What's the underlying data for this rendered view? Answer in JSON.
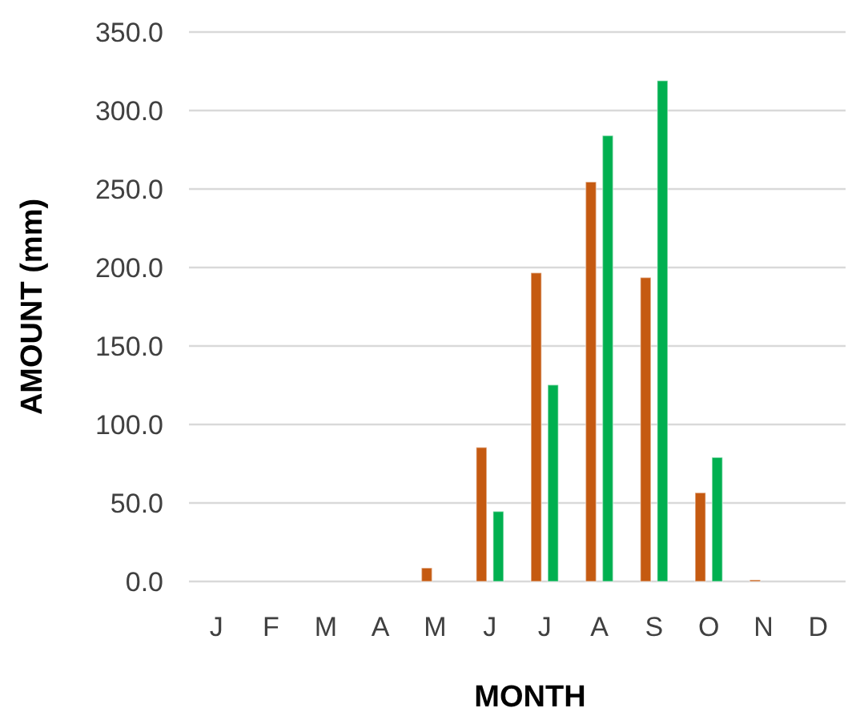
{
  "chart_data": {
    "type": "bar",
    "xlabel": "MONTH",
    "ylabel": "AMOUNT (mm)",
    "categories": [
      "J",
      "F",
      "M",
      "A",
      "M",
      "J",
      "J",
      "A",
      "S",
      "O",
      "N",
      "D"
    ],
    "series": [
      {
        "color": "#c55a11",
        "values": [
          0,
          0,
          0,
          0,
          8.6,
          85.4,
          196.6,
          254.5,
          193.6,
          56.5,
          1,
          0
        ]
      },
      {
        "color": "#00b050",
        "values": [
          0,
          0,
          0,
          0,
          0,
          44.6,
          125.2,
          284,
          319,
          79,
          0,
          0
        ]
      }
    ],
    "ylim": [
      0,
      350
    ],
    "yticks": [
      {
        "value": 0,
        "label": "0.0"
      },
      {
        "value": 50,
        "label": "50.0"
      },
      {
        "value": 100,
        "label": "100.0"
      },
      {
        "value": 150,
        "label": "150.0"
      },
      {
        "value": 200,
        "label": "200.0"
      },
      {
        "value": 250,
        "label": "250.0"
      },
      {
        "value": 300,
        "label": "300.0"
      },
      {
        "value": 350,
        "label": "350.0"
      }
    ],
    "grid": "y"
  }
}
